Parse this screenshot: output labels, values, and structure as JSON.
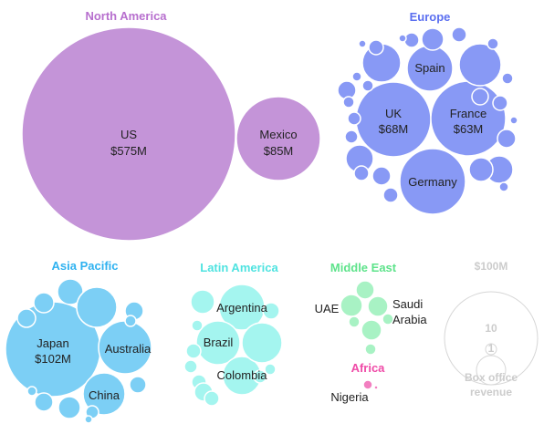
{
  "chart_data": {
    "type": "bubble",
    "title": "",
    "regions": [
      {
        "name": "North America",
        "color": "#c494d8",
        "title_color": "#b76fce",
        "countries": [
          {
            "name": "US",
            "value": 575,
            "label": "$575M"
          },
          {
            "name": "Mexico",
            "value": 85,
            "label": "$85M"
          }
        ]
      },
      {
        "name": "Europe",
        "color": "#8899f5",
        "title_color": "#5b6ff0",
        "countries": [
          {
            "name": "UK",
            "value": 68,
            "label": "$68M"
          },
          {
            "name": "France",
            "value": 63,
            "label": "$63M"
          },
          {
            "name": "Germany",
            "value": 50
          },
          {
            "name": "Spain",
            "value": 20
          }
        ]
      },
      {
        "name": "Asia Pacific",
        "color": "#7ccff5",
        "title_color": "#2fb2f0",
        "countries": [
          {
            "name": "Japan",
            "value": 102,
            "label": "$102M"
          },
          {
            "name": "Australia",
            "value": 30
          },
          {
            "name": "China",
            "value": 18
          }
        ]
      },
      {
        "name": "Latin America",
        "color": "#a4f5ef",
        "title_color": "#4fe3e0",
        "countries": [
          {
            "name": "Argentina",
            "value": 20
          },
          {
            "name": "Brazil",
            "value": 19
          },
          {
            "name": "Colombia",
            "value": 14
          }
        ]
      },
      {
        "name": "Middle East",
        "color": "#a8f2c4",
        "title_color": "#5ee38b",
        "countries": [
          {
            "name": "UAE",
            "value": 5
          },
          {
            "name": "Saudi Arabia",
            "value": 4
          }
        ]
      },
      {
        "name": "Africa",
        "color": "#f27fc0",
        "title_color": "#ef4aa7",
        "countries": [
          {
            "name": "Nigeria",
            "value": 1
          }
        ]
      }
    ],
    "legend": {
      "title": "$100M",
      "sizes": [
        "100",
        "10",
        "1"
      ],
      "caption": [
        "Box office",
        "revenue"
      ]
    }
  }
}
